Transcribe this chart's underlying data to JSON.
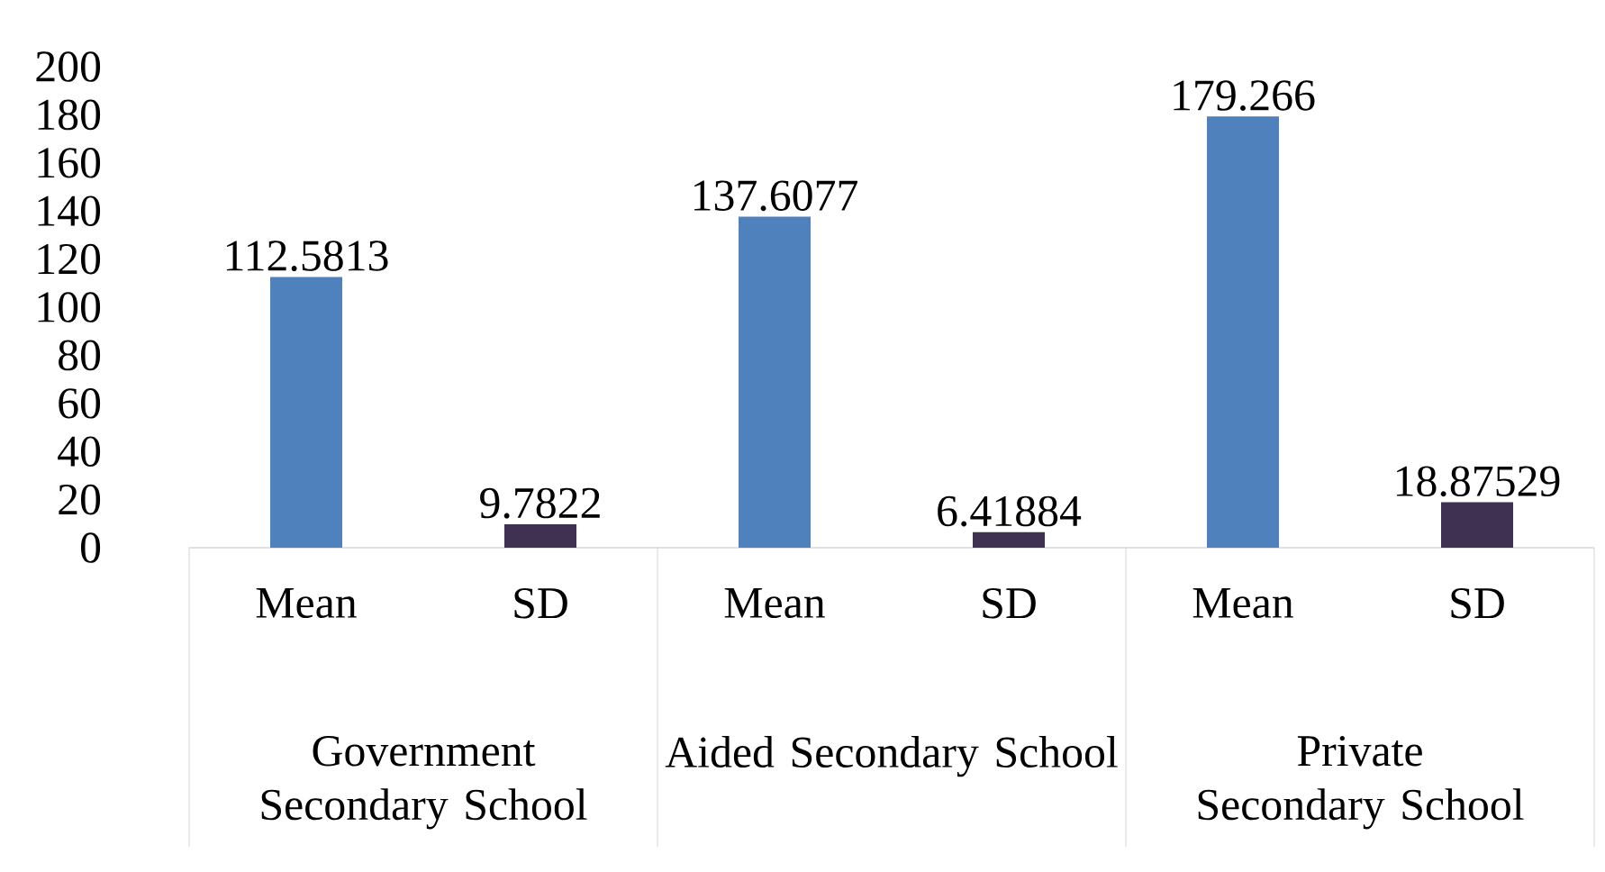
{
  "chart_data": {
    "type": "bar",
    "categories": [
      "Mean",
      "SD",
      "Mean",
      "SD",
      "Mean",
      "SD"
    ],
    "values": [
      112.5813,
      9.7822,
      137.6077,
      6.41884,
      179.266,
      18.87529
    ],
    "colors": [
      "#4f81bd",
      "#3f3151",
      "#4f81bd",
      "#3f3151",
      "#4f81bd",
      "#3f3151"
    ],
    "ylim": [
      0,
      200
    ],
    "yticks": [
      0,
      20,
      40,
      60,
      80,
      100,
      120,
      140,
      160,
      180,
      200
    ],
    "data_labels": true,
    "annotations": [
      "Government Secondary School",
      "Aided Secondary School",
      "Private Secondary School"
    ]
  }
}
